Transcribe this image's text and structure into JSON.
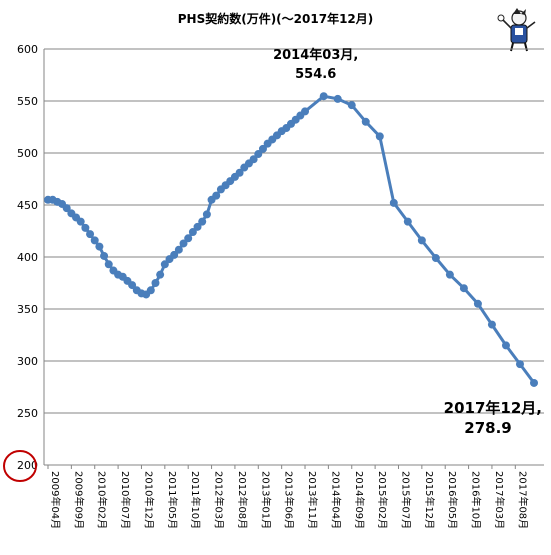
{
  "chart_data": {
    "type": "line",
    "title": "PHS契約数(万件)(〜2017年12月)",
    "xlabel": "",
    "ylabel": "",
    "ylim": [
      200,
      600
    ],
    "yticks": [
      "200",
      "250",
      "300",
      "350",
      "400",
      "450",
      "500",
      "550",
      "600"
    ],
    "grid": true,
    "legend": "none",
    "colors": {
      "line": "#4a7ebb",
      "grid": "#868686",
      "highlight_circle": "#c00000"
    },
    "x_tick_labels": [
      "2009年04月",
      "2009年09月",
      "2010年02月",
      "2010年07月",
      "2010年12月",
      "2011年05月",
      "2011年10月",
      "2012年03月",
      "2012年08月",
      "2013年01月",
      "2013年06月",
      "2013年11月",
      "2014年04月",
      "2014年09月",
      "2015年02月",
      "2015年07月",
      "2015年12月",
      "2016年05月",
      "2016年10月",
      "2017年03月",
      "2017年08月"
    ],
    "series": [
      {
        "values": [
          {
            "x": "2009年04月",
            "y": 455
          },
          {
            "x": "2009年05月",
            "y": 455
          },
          {
            "x": "2009年06月",
            "y": 453
          },
          {
            "x": "2009年07月",
            "y": 451
          },
          {
            "x": "2009年08月",
            "y": 447
          },
          {
            "x": "2009年09月",
            "y": 442
          },
          {
            "x": "2009年10月",
            "y": 438
          },
          {
            "x": "2009年11月",
            "y": 434
          },
          {
            "x": "2009年12月",
            "y": 428
          },
          {
            "x": "2010年01月",
            "y": 422
          },
          {
            "x": "2010年02月",
            "y": 416
          },
          {
            "x": "2010年03月",
            "y": 410
          },
          {
            "x": "2010年04月",
            "y": 401
          },
          {
            "x": "2010年05月",
            "y": 393
          },
          {
            "x": "2010年06月",
            "y": 387
          },
          {
            "x": "2010年07月",
            "y": 383
          },
          {
            "x": "2010年08月",
            "y": 381
          },
          {
            "x": "2010年09月",
            "y": 377
          },
          {
            "x": "2010年10月",
            "y": 373
          },
          {
            "x": "2010年11月",
            "y": 368
          },
          {
            "x": "2010年12月",
            "y": 365
          },
          {
            "x": "2011年01月",
            "y": 364
          },
          {
            "x": "2011年02月",
            "y": 368
          },
          {
            "x": "2011年03月",
            "y": 375
          },
          {
            "x": "2011年04月",
            "y": 383
          },
          {
            "x": "2011年05月",
            "y": 393
          },
          {
            "x": "2011年06月",
            "y": 398
          },
          {
            "x": "2011年07月",
            "y": 402
          },
          {
            "x": "2011年08月",
            "y": 407
          },
          {
            "x": "2011年09月",
            "y": 413
          },
          {
            "x": "2011年10月",
            "y": 418
          },
          {
            "x": "2011年11月",
            "y": 424
          },
          {
            "x": "2011年12月",
            "y": 429
          },
          {
            "x": "2012年01月",
            "y": 434
          },
          {
            "x": "2012年02月",
            "y": 441
          },
          {
            "x": "2012年03月",
            "y": 455
          },
          {
            "x": "2012年04月",
            "y": 459
          },
          {
            "x": "2012年05月",
            "y": 465
          },
          {
            "x": "2012年06月",
            "y": 469
          },
          {
            "x": "2012年07月",
            "y": 473
          },
          {
            "x": "2012年08月",
            "y": 477
          },
          {
            "x": "2012年09月",
            "y": 481
          },
          {
            "x": "2012年10月",
            "y": 486
          },
          {
            "x": "2012年11月",
            "y": 490
          },
          {
            "x": "2012年12月",
            "y": 494
          },
          {
            "x": "2013年01月",
            "y": 499
          },
          {
            "x": "2013年02月",
            "y": 504
          },
          {
            "x": "2013年03月",
            "y": 509
          },
          {
            "x": "2013年04月",
            "y": 513
          },
          {
            "x": "2013年05月",
            "y": 517
          },
          {
            "x": "2013年06月",
            "y": 521
          },
          {
            "x": "2013年07月",
            "y": 524
          },
          {
            "x": "2013年08月",
            "y": 528
          },
          {
            "x": "2013年09月",
            "y": 532
          },
          {
            "x": "2013年10月",
            "y": 536
          },
          {
            "x": "2013年11月",
            "y": 540
          },
          {
            "x": "2014年03月",
            "y": 554.6
          },
          {
            "x": "2014年06月",
            "y": 552
          },
          {
            "x": "2014年09月",
            "y": 546
          },
          {
            "x": "2014年12月",
            "y": 530
          },
          {
            "x": "2015年03月",
            "y": 516
          },
          {
            "x": "2015年06月",
            "y": 452
          },
          {
            "x": "2015年09月",
            "y": 434
          },
          {
            "x": "2015年12月",
            "y": 416
          },
          {
            "x": "2016年03月",
            "y": 399
          },
          {
            "x": "2016年06月",
            "y": 383
          },
          {
            "x": "2016年09月",
            "y": 370
          },
          {
            "x": "2016年12月",
            "y": 355
          },
          {
            "x": "2017年03月",
            "y": 335
          },
          {
            "x": "2017年06月",
            "y": 315
          },
          {
            "x": "2017年09月",
            "y": 297
          },
          {
            "x": "2017年12月",
            "y": 278.9
          }
        ]
      }
    ],
    "annotations": [
      {
        "line1": "2014年03月,",
        "line2": "554.6",
        "x": "2014年03月",
        "y": 554.6
      },
      {
        "line1": "2017年12月,",
        "line2": "278.9",
        "x": "2017年12月",
        "y": 278.9
      }
    ],
    "highlight": {
      "label": "200",
      "shape": "circle"
    },
    "corner_icon": "mascot-illustration"
  }
}
